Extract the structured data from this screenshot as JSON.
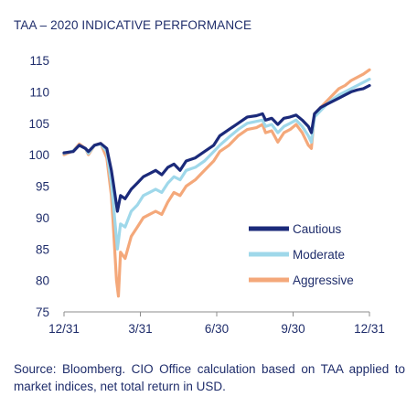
{
  "title": "TAA – 2020 INDICATIVE PERFORMANCE",
  "source": "Source: Bloomberg. CIO Office calculation based on TAA applied to market indices, net total return in USD.",
  "chart_data": {
    "type": "line",
    "title": "TAA – 2020 INDICATIVE PERFORMANCE",
    "xlabel": "",
    "ylabel": "",
    "ylim": [
      75,
      115
    ],
    "yticks": [
      75,
      80,
      85,
      90,
      95,
      100,
      105,
      110,
      115
    ],
    "xlim": [
      0,
      1
    ],
    "xticks": [
      {
        "label": "12/31",
        "x": 0
      },
      {
        "label": "3/31",
        "x": 0.25
      },
      {
        "label": "6/30",
        "x": 0.5
      },
      {
        "label": "9/30",
        "x": 0.75
      },
      {
        "label": "12/31",
        "x": 1.0
      }
    ],
    "grid": false,
    "legend": "right",
    "series": [
      {
        "name": "Cautious",
        "color": "#1b2a7a",
        "points": [
          [
            0,
            100.3
          ],
          [
            0.03,
            100.5
          ],
          [
            0.05,
            101.5
          ],
          [
            0.07,
            101.0
          ],
          [
            0.08,
            100.5
          ],
          [
            0.1,
            101.5
          ],
          [
            0.12,
            101.8
          ],
          [
            0.14,
            101.0
          ],
          [
            0.155,
            97.5
          ],
          [
            0.16,
            96.0
          ],
          [
            0.175,
            91.0
          ],
          [
            0.185,
            93.5
          ],
          [
            0.2,
            93.0
          ],
          [
            0.22,
            94.5
          ],
          [
            0.24,
            95.5
          ],
          [
            0.26,
            96.5
          ],
          [
            0.28,
            97.0
          ],
          [
            0.3,
            97.5
          ],
          [
            0.32,
            96.8
          ],
          [
            0.34,
            98.0
          ],
          [
            0.36,
            98.5
          ],
          [
            0.38,
            97.5
          ],
          [
            0.4,
            99.0
          ],
          [
            0.43,
            99.5
          ],
          [
            0.46,
            100.5
          ],
          [
            0.49,
            101.5
          ],
          [
            0.51,
            103.0
          ],
          [
            0.54,
            104.0
          ],
          [
            0.57,
            105.0
          ],
          [
            0.6,
            106.0
          ],
          [
            0.63,
            106.2
          ],
          [
            0.65,
            106.5
          ],
          [
            0.66,
            105.5
          ],
          [
            0.68,
            105.8
          ],
          [
            0.7,
            104.8
          ],
          [
            0.72,
            105.8
          ],
          [
            0.74,
            106.0
          ],
          [
            0.76,
            106.3
          ],
          [
            0.78,
            105.5
          ],
          [
            0.8,
            104.5
          ],
          [
            0.81,
            103.5
          ],
          [
            0.82,
            106.5
          ],
          [
            0.84,
            107.5
          ],
          [
            0.86,
            108.0
          ],
          [
            0.88,
            108.5
          ],
          [
            0.9,
            109.0
          ],
          [
            0.92,
            109.5
          ],
          [
            0.94,
            110.0
          ],
          [
            0.96,
            110.3
          ],
          [
            0.98,
            110.5
          ],
          [
            1.0,
            111.0
          ]
        ]
      },
      {
        "name": "Moderate",
        "color": "#9fd8ea",
        "points": [
          [
            0,
            100.2
          ],
          [
            0.03,
            100.6
          ],
          [
            0.05,
            101.5
          ],
          [
            0.07,
            101.0
          ],
          [
            0.08,
            100.2
          ],
          [
            0.1,
            101.5
          ],
          [
            0.12,
            101.7
          ],
          [
            0.14,
            100.5
          ],
          [
            0.155,
            95.5
          ],
          [
            0.16,
            93.0
          ],
          [
            0.175,
            85.0
          ],
          [
            0.185,
            89.0
          ],
          [
            0.2,
            88.5
          ],
          [
            0.22,
            91.0
          ],
          [
            0.24,
            92.0
          ],
          [
            0.26,
            93.5
          ],
          [
            0.28,
            94.0
          ],
          [
            0.3,
            94.5
          ],
          [
            0.32,
            94.0
          ],
          [
            0.34,
            95.5
          ],
          [
            0.36,
            96.5
          ],
          [
            0.38,
            96.0
          ],
          [
            0.4,
            97.5
          ],
          [
            0.43,
            98.0
          ],
          [
            0.46,
            99.0
          ],
          [
            0.49,
            100.5
          ],
          [
            0.51,
            101.5
          ],
          [
            0.54,
            102.8
          ],
          [
            0.57,
            104.0
          ],
          [
            0.6,
            105.0
          ],
          [
            0.63,
            105.3
          ],
          [
            0.65,
            105.5
          ],
          [
            0.66,
            104.5
          ],
          [
            0.68,
            104.8
          ],
          [
            0.7,
            103.5
          ],
          [
            0.72,
            104.5
          ],
          [
            0.74,
            105.0
          ],
          [
            0.76,
            105.5
          ],
          [
            0.78,
            104.5
          ],
          [
            0.8,
            103.0
          ],
          [
            0.81,
            102.0
          ],
          [
            0.82,
            106.0
          ],
          [
            0.84,
            107.0
          ],
          [
            0.86,
            108.0
          ],
          [
            0.88,
            108.8
          ],
          [
            0.9,
            109.5
          ],
          [
            0.92,
            110.0
          ],
          [
            0.94,
            110.5
          ],
          [
            0.96,
            111.0
          ],
          [
            0.98,
            111.5
          ],
          [
            1.0,
            112.0
          ]
        ]
      },
      {
        "name": "Aggressive",
        "color": "#f4a87a",
        "points": [
          [
            0,
            100.0
          ],
          [
            0.03,
            100.6
          ],
          [
            0.05,
            101.7
          ],
          [
            0.07,
            101.0
          ],
          [
            0.08,
            100.0
          ],
          [
            0.1,
            101.5
          ],
          [
            0.12,
            101.8
          ],
          [
            0.14,
            99.5
          ],
          [
            0.155,
            93.5
          ],
          [
            0.16,
            90.0
          ],
          [
            0.172,
            80.0
          ],
          [
            0.178,
            77.5
          ],
          [
            0.185,
            84.5
          ],
          [
            0.2,
            83.5
          ],
          [
            0.22,
            87.0
          ],
          [
            0.24,
            88.5
          ],
          [
            0.26,
            90.0
          ],
          [
            0.28,
            90.5
          ],
          [
            0.3,
            91.0
          ],
          [
            0.32,
            90.5
          ],
          [
            0.34,
            92.5
          ],
          [
            0.36,
            94.0
          ],
          [
            0.38,
            93.5
          ],
          [
            0.4,
            95.0
          ],
          [
            0.43,
            96.0
          ],
          [
            0.46,
            97.5
          ],
          [
            0.49,
            99.0
          ],
          [
            0.51,
            100.5
          ],
          [
            0.54,
            101.5
          ],
          [
            0.57,
            103.0
          ],
          [
            0.6,
            104.0
          ],
          [
            0.63,
            104.3
          ],
          [
            0.65,
            104.8
          ],
          [
            0.66,
            103.5
          ],
          [
            0.68,
            103.8
          ],
          [
            0.7,
            102.0
          ],
          [
            0.72,
            103.5
          ],
          [
            0.74,
            104.0
          ],
          [
            0.76,
            104.8
          ],
          [
            0.78,
            103.5
          ],
          [
            0.8,
            101.5
          ],
          [
            0.81,
            101.0
          ],
          [
            0.82,
            106.5
          ],
          [
            0.84,
            107.5
          ],
          [
            0.86,
            108.5
          ],
          [
            0.88,
            109.5
          ],
          [
            0.9,
            110.5
          ],
          [
            0.92,
            111.0
          ],
          [
            0.94,
            111.8
          ],
          [
            0.96,
            112.3
          ],
          [
            0.98,
            112.8
          ],
          [
            1.0,
            113.5
          ]
        ]
      }
    ]
  }
}
